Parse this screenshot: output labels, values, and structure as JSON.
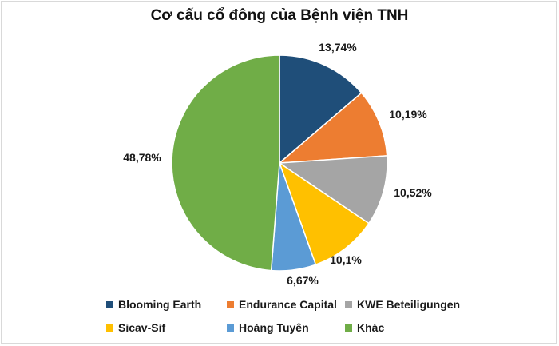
{
  "chart_data": {
    "type": "pie",
    "title": "Cơ cấu cổ đông của Bệnh viện TNH",
    "slices": [
      {
        "name": "Blooming Earth",
        "value": 13.74,
        "label": "13,74%",
        "color": "#1f4e79"
      },
      {
        "name": "Endurance Capital",
        "value": 10.19,
        "label": "10,19%",
        "color": "#ed7d31"
      },
      {
        "name": "KWE Beteiligungen",
        "value": 10.52,
        "label": "10,52%",
        "color": "#a5a5a5"
      },
      {
        "name": "Sicav-Sif",
        "value": 10.1,
        "label": "10,1%",
        "color": "#ffc000"
      },
      {
        "name": "Hoàng Tuyên",
        "value": 6.67,
        "label": "6,67%",
        "color": "#5b9bd5"
      },
      {
        "name": "Khác",
        "value": 48.78,
        "label": "48,78%",
        "color": "#70ad47"
      }
    ],
    "legend_position": "bottom"
  }
}
